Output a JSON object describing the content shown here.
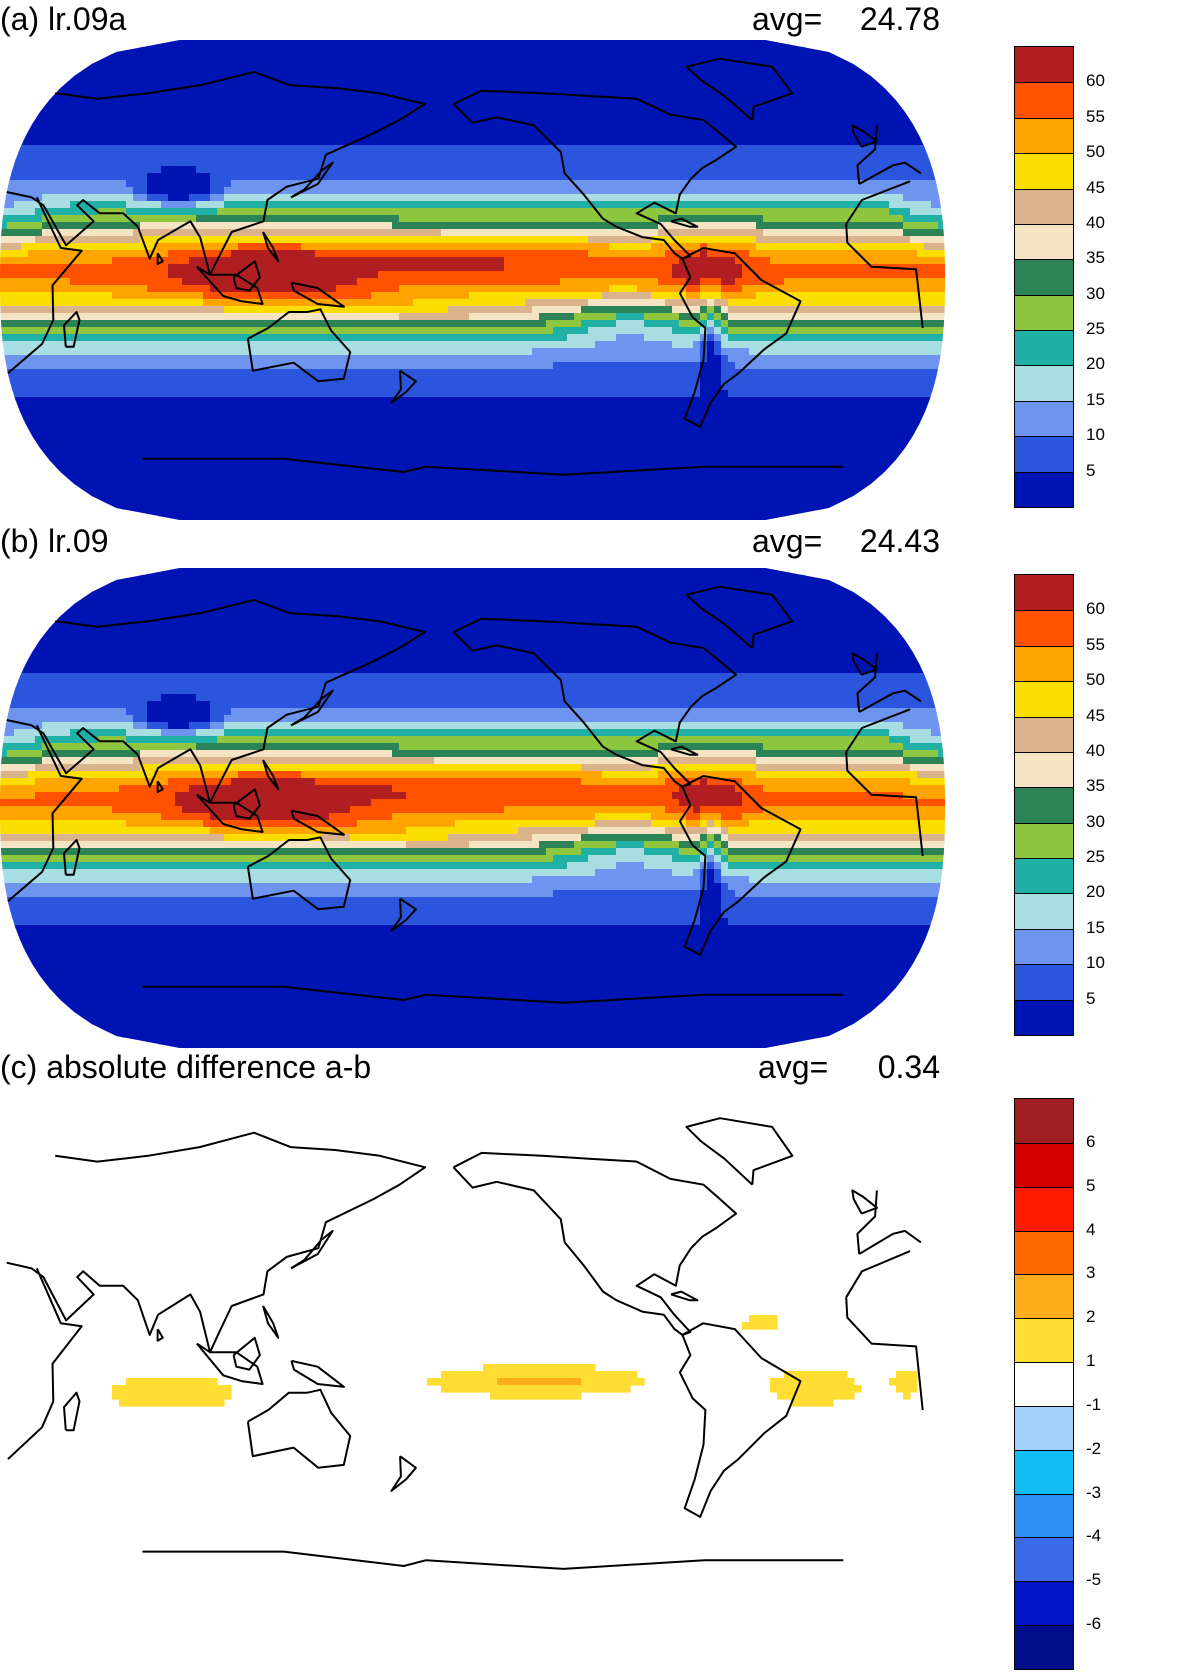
{
  "panels": [
    {
      "id": "a",
      "title": "(a) lr.09a",
      "avg_label": "avg=",
      "avg_value": "24.78",
      "colors": [
        "#0014b4",
        "#2c55de",
        "#6d94ee",
        "#a8dde2",
        "#20b0a6",
        "#8ec63f",
        "#2c8456",
        "#f4e4c4",
        "#dab28c",
        "#fade00",
        "#ffa400",
        "#ff5200",
        "#b01e22"
      ],
      "colorbar_labels": [
        "5",
        "10",
        "15",
        "20",
        "25",
        "30",
        "35",
        "40",
        "45",
        "50",
        "55",
        "60"
      ],
      "coastline_color": "#000000",
      "field": "zonal-mean precipitable-water style field"
    },
    {
      "id": "b",
      "title": "(b) lr.09",
      "avg_label": "avg=",
      "avg_value": "24.43",
      "colors": [
        "#0014b4",
        "#2c55de",
        "#6d94ee",
        "#a8dde2",
        "#20b0a6",
        "#8ec63f",
        "#2c8456",
        "#f4e4c4",
        "#dab28c",
        "#fade00",
        "#ffa400",
        "#ff5200",
        "#b01e22"
      ],
      "colorbar_labels": [
        "5",
        "10",
        "15",
        "20",
        "25",
        "30",
        "35",
        "40",
        "45",
        "50",
        "55",
        "60"
      ],
      "coastline_color": "#000000"
    },
    {
      "id": "c",
      "title": "(c) absolute difference a-b",
      "avg_label": "avg=",
      "avg_value": "0.34",
      "colors": [
        "#000e8c",
        "#0014c8",
        "#3b6ae6",
        "#2b8ef0",
        "#10bdf4",
        "#a2d2fa",
        "#ffffff",
        "#ffdd33",
        "#ffac1a",
        "#ff6a00",
        "#ff1a00",
        "#d40000",
        "#a01e22"
      ],
      "colorbar_labels": [
        "-6",
        "-5",
        "-4",
        "-3",
        "-2",
        "-1",
        "1",
        "2",
        "3",
        "4",
        "5",
        "6"
      ],
      "coastline_color": "#000000"
    }
  ]
}
